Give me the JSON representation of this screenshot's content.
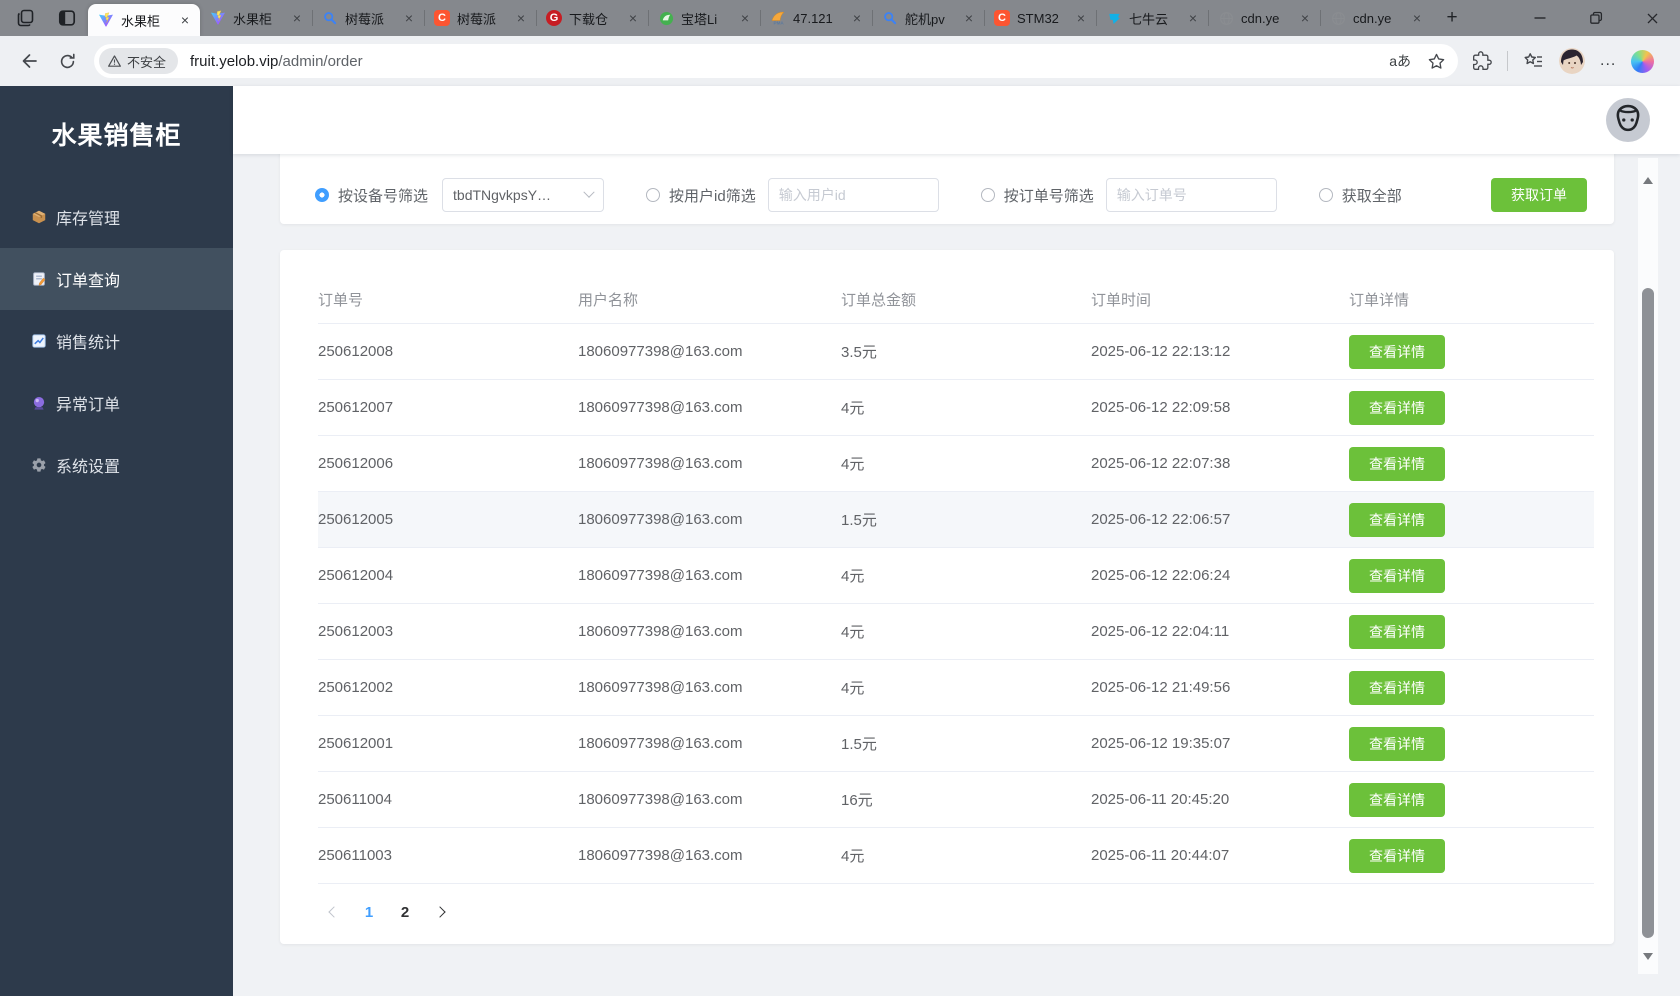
{
  "browser": {
    "tabs": [
      {
        "title": "水果柜",
        "icon": "vite-icon",
        "active": true
      },
      {
        "title": "水果柜",
        "icon": "vite-icon",
        "active": false
      },
      {
        "title": "树莓派",
        "icon": "search-icon",
        "active": false
      },
      {
        "title": "树莓派",
        "icon": "csdn-icon",
        "active": false
      },
      {
        "title": "下载仓",
        "icon": "gitee-icon",
        "active": false
      },
      {
        "title": "宝塔Li",
        "icon": "baota-icon",
        "active": false
      },
      {
        "title": "47.121",
        "icon": "phpmyadmin-icon",
        "active": false
      },
      {
        "title": "舵机pv",
        "icon": "search-icon",
        "active": false
      },
      {
        "title": "STM32",
        "icon": "csdn-icon",
        "active": false
      },
      {
        "title": "七牛云",
        "icon": "qiniu-icon",
        "active": false
      },
      {
        "title": "cdn.ye",
        "icon": "globe-icon",
        "active": false
      },
      {
        "title": "cdn.ye",
        "icon": "globe-icon",
        "active": false
      }
    ],
    "new_tab_glyph": "+",
    "url": {
      "security_label": "不安全",
      "host": "fruit.yelob.vip",
      "path": "/admin/order"
    },
    "translate_glyph": "aあ",
    "more_glyph": "..."
  },
  "sidebar": {
    "title": "水果销售柜",
    "items": [
      {
        "label": "库存管理",
        "icon": "package-icon",
        "active": false
      },
      {
        "label": "订单查询",
        "icon": "order-icon",
        "active": true
      },
      {
        "label": "销售统计",
        "icon": "stats-chart-icon",
        "active": false
      },
      {
        "label": "异常订单",
        "icon": "crystal-ball-icon",
        "active": false
      },
      {
        "label": "系统设置",
        "icon": "gear-icon",
        "active": false
      }
    ]
  },
  "filters": {
    "device": {
      "label": "按设备号筛选",
      "value": "tbdTNgvkpsY…",
      "selected": true
    },
    "user": {
      "label": "按用户id筛选",
      "placeholder": "输入用户id",
      "selected": false
    },
    "order": {
      "label": "按订单号筛选",
      "placeholder": "输入订单号",
      "selected": false
    },
    "all": {
      "label": "获取全部",
      "selected": false
    },
    "submit_label": "获取订单"
  },
  "table": {
    "columns": [
      "订单号",
      "用户名称",
      "订单总金额",
      "订单时间",
      "订单详情"
    ],
    "action_label": "查看详情",
    "highlighted_row_index": 3,
    "rows": [
      [
        "250612008",
        "18060977398@163.com",
        "3.5元",
        "2025-06-12 22:13:12"
      ],
      [
        "250612007",
        "18060977398@163.com",
        "4元",
        "2025-06-12 22:09:58"
      ],
      [
        "250612006",
        "18060977398@163.com",
        "4元",
        "2025-06-12 22:07:38"
      ],
      [
        "250612005",
        "18060977398@163.com",
        "1.5元",
        "2025-06-12 22:06:57"
      ],
      [
        "250612004",
        "18060977398@163.com",
        "4元",
        "2025-06-12 22:06:24"
      ],
      [
        "250612003",
        "18060977398@163.com",
        "4元",
        "2025-06-12 22:04:11"
      ],
      [
        "250612002",
        "18060977398@163.com",
        "4元",
        "2025-06-12 21:49:56"
      ],
      [
        "250612001",
        "18060977398@163.com",
        "1.5元",
        "2025-06-12 19:35:07"
      ],
      [
        "250611004",
        "18060977398@163.com",
        "16元",
        "2025-06-11 20:45:20"
      ],
      [
        "250611003",
        "18060977398@163.com",
        "4元",
        "2025-06-11 20:44:07"
      ]
    ],
    "pagination": {
      "pages": [
        "1",
        "2"
      ],
      "active_page": "1"
    }
  },
  "colors": {
    "accent_green": "#6cc13a",
    "accent_blue": "#409eff",
    "sidebar_bg": "#2d3a4b",
    "page_bg": "#f0f2f5"
  }
}
